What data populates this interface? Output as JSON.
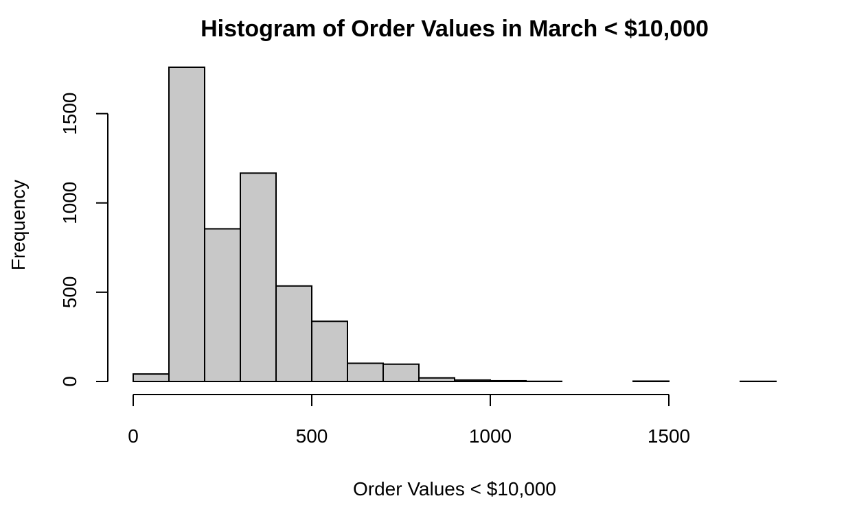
{
  "chart_data": {
    "type": "bar",
    "title": "Histogram of Order Values in March < $10,000",
    "xlabel": "Order Values < $10,000",
    "ylabel": "Frequency",
    "bins": [
      {
        "start": 0,
        "end": 100,
        "count": 42
      },
      {
        "start": 100,
        "end": 200,
        "count": 1760
      },
      {
        "start": 200,
        "end": 300,
        "count": 855
      },
      {
        "start": 300,
        "end": 400,
        "count": 1167
      },
      {
        "start": 400,
        "end": 500,
        "count": 535
      },
      {
        "start": 500,
        "end": 600,
        "count": 337
      },
      {
        "start": 600,
        "end": 700,
        "count": 102
      },
      {
        "start": 700,
        "end": 800,
        "count": 97
      },
      {
        "start": 800,
        "end": 900,
        "count": 20
      },
      {
        "start": 900,
        "end": 1000,
        "count": 8
      },
      {
        "start": 1000,
        "end": 1100,
        "count": 4
      },
      {
        "start": 1100,
        "end": 1200,
        "count": 1
      },
      {
        "start": 1200,
        "end": 1300,
        "count": 0
      },
      {
        "start": 1300,
        "end": 1400,
        "count": 0
      },
      {
        "start": 1400,
        "end": 1500,
        "count": 2
      },
      {
        "start": 1500,
        "end": 1600,
        "count": 0
      },
      {
        "start": 1600,
        "end": 1700,
        "count": 0
      },
      {
        "start": 1700,
        "end": 1800,
        "count": 1
      }
    ],
    "xlim": [
      0,
      1800
    ],
    "ylim": [
      0,
      1760
    ],
    "x_ticks": [
      0,
      500,
      1000,
      1500
    ],
    "y_ticks": [
      0,
      500,
      1000,
      1500
    ],
    "bar_color": "#c8c8c8",
    "grid": false,
    "legend": "none"
  }
}
